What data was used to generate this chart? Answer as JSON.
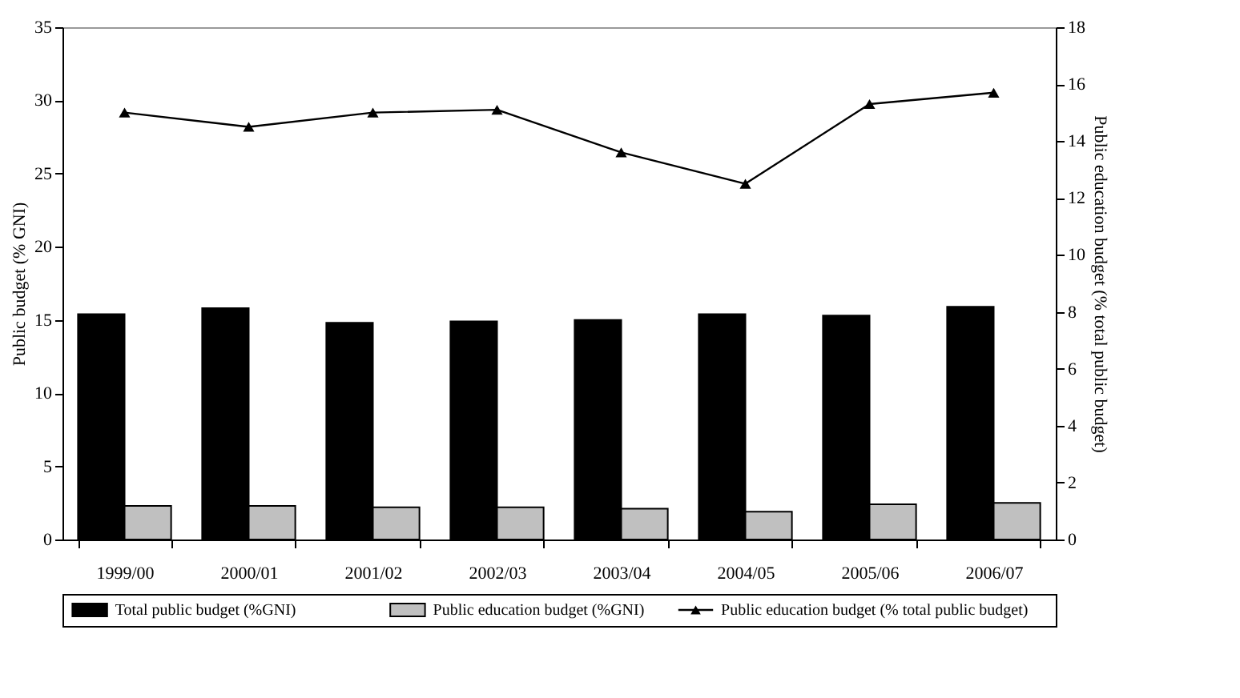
{
  "chart_data": {
    "type": "bar",
    "categories": [
      "1999/00",
      "2000/01",
      "2001/02",
      "2002/03",
      "2003/04",
      "2004/05",
      "2005/06",
      "2006/07"
    ],
    "ylabel": "Public budget (% GNI)",
    "y2label": "Public education budget (% total public budget)",
    "ylim": [
      0,
      35
    ],
    "yticks": [
      0,
      5,
      10,
      15,
      20,
      25,
      30,
      35
    ],
    "y2lim": [
      0,
      18
    ],
    "y2ticks": [
      0,
      2,
      4,
      6,
      8,
      10,
      12,
      14,
      16,
      18
    ],
    "series": [
      {
        "name": "Total public budget (%GNI)",
        "type": "bar",
        "color": "#000000",
        "values": [
          15.4,
          15.8,
          14.8,
          14.9,
          15.0,
          15.4,
          15.3,
          15.9
        ]
      },
      {
        "name": "Public education budget (%GNI)",
        "type": "bar",
        "color": "#c0c0c0",
        "values": [
          2.3,
          2.3,
          2.2,
          2.2,
          2.1,
          1.9,
          2.4,
          2.5
        ]
      },
      {
        "name": "Public education budget (% total public budget)",
        "type": "line",
        "axis": "y2",
        "color": "#000000",
        "values": [
          15.0,
          14.5,
          15.0,
          15.1,
          13.6,
          12.5,
          15.3,
          15.7
        ]
      }
    ],
    "marker": "triangle",
    "line_style": "solid",
    "grid": false,
    "legend": "bottom"
  }
}
